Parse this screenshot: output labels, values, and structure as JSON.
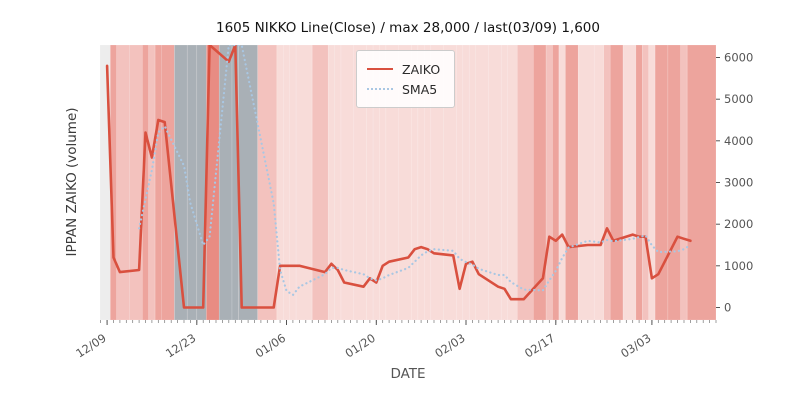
{
  "chart_data": {
    "type": "line",
    "title": "1605 NIKKO Line(Close) / max 28,000 / last(03/09) 1,600",
    "xlabel": "DATE",
    "ylabel": "IPPAN ZAIKO (volume)",
    "ylim": [
      -300,
      6300
    ],
    "x_days_range": [
      -1.1,
      95
    ],
    "yticks": [
      0,
      1000,
      2000,
      3000,
      4000,
      5000,
      6000
    ],
    "xticks": [
      {
        "label": "12/09",
        "day": 0
      },
      {
        "label": "12/23",
        "day": 14
      },
      {
        "label": "01/06",
        "day": 28
      },
      {
        "label": "01/20",
        "day": 42
      },
      {
        "label": "02/03",
        "day": 56
      },
      {
        "label": "02/17",
        "day": 70
      },
      {
        "label": "03/03",
        "day": 85
      }
    ],
    "dates": [
      "12/09",
      "12/10",
      "12/11",
      "12/14",
      "12/15",
      "12/16",
      "12/17",
      "12/18",
      "12/21",
      "12/22",
      "12/24",
      "12/25",
      "12/28",
      "12/29",
      "12/30",
      "01/04",
      "01/05",
      "01/06",
      "01/07",
      "01/08",
      "01/12",
      "01/13",
      "01/14",
      "01/15",
      "01/18",
      "01/19",
      "01/20",
      "01/21",
      "01/22",
      "01/25",
      "01/26",
      "01/27",
      "01/28",
      "01/29",
      "02/01",
      "02/02",
      "02/03",
      "02/04",
      "02/05",
      "02/08",
      "02/09",
      "02/10",
      "02/12",
      "02/15",
      "02/16",
      "02/17",
      "02/18",
      "02/19",
      "02/22",
      "02/24",
      "02/25",
      "02/26",
      "02/29",
      "03/01",
      "03/02",
      "03/03",
      "03/04",
      "03/07",
      "03/08",
      "03/09"
    ],
    "days": [
      0,
      1,
      2,
      5,
      6,
      7,
      8,
      9,
      12,
      13,
      15,
      16,
      19,
      20,
      21,
      26,
      27,
      28,
      29,
      30,
      34,
      35,
      36,
      37,
      40,
      41,
      42,
      43,
      44,
      47,
      48,
      49,
      50,
      51,
      54,
      55,
      56,
      57,
      58,
      61,
      62,
      63,
      65,
      68,
      69,
      70,
      71,
      72,
      75,
      77,
      78,
      79,
      82,
      83,
      84,
      85,
      86,
      89,
      90,
      91
    ],
    "series": [
      {
        "name": "ZAIKO",
        "color": "#d9503f",
        "style": "solid",
        "width": 2.6,
        "values": [
          5800,
          1200,
          850,
          900,
          4200,
          3600,
          4500,
          4450,
          0,
          0,
          0,
          28000,
          5900,
          28000,
          0,
          0,
          1000,
          1000,
          1000,
          1000,
          850,
          1050,
          900,
          600,
          500,
          700,
          600,
          1000,
          1100,
          1200,
          1400,
          1450,
          1400,
          1300,
          1250,
          450,
          1050,
          1100,
          800,
          500,
          450,
          200,
          200,
          700,
          1700,
          1600,
          1750,
          1450,
          1500,
          1500,
          1900,
          1600,
          1750,
          1700,
          1700,
          700,
          800,
          1700,
          1650,
          1600
        ]
      },
      {
        "name": "SMA5",
        "color": "#a9c7e3",
        "style": "dotted",
        "width": 2.2,
        "values": [
          null,
          null,
          null,
          1900,
          2600,
          3300,
          4200,
          4350,
          3400,
          2500,
          1500,
          1700,
          6800,
          12000,
          13000,
          2500,
          900,
          400,
          300,
          500,
          800,
          950,
          950,
          900,
          800,
          700,
          650,
          700,
          780,
          950,
          1100,
          1250,
          1350,
          1400,
          1360,
          1170,
          1090,
          1030,
          930,
          780,
          780,
          610,
          430,
          410,
          650,
          880,
          1190,
          1440,
          1600,
          1560,
          1620,
          1590,
          1650,
          1690,
          1730,
          1490,
          1330,
          1350,
          1400,
          1500
        ]
      }
    ],
    "legend": {
      "position": "upper-center-left"
    },
    "background_bands": {
      "palette": {
        "pale": "#ededed",
        "base": "#f8dcd9",
        "mid": "#f3c2be",
        "dark": "#eda49d",
        "red": "#e88c83",
        "gray": "#a9b0b6"
      },
      "keys": [
        "pale",
        "dark",
        "mid",
        "mid",
        "dark",
        "mid",
        "dark",
        "dark",
        "gray",
        "gray",
        "gray",
        "red",
        "gray",
        "gray",
        "gray",
        "mid",
        "base",
        "base",
        "base",
        "base",
        "mid",
        "base",
        "base",
        "base",
        "base",
        "base",
        "base",
        "base",
        "base",
        "base",
        "base",
        "base",
        "base",
        "base",
        "base",
        "base",
        "base",
        "base",
        "base",
        "base",
        "base",
        "base",
        "mid",
        "dark",
        "mid",
        "dark",
        "base",
        "dark",
        "base",
        "base",
        "mid",
        "dark",
        "base",
        "dark",
        "mid",
        "base",
        "dark",
        "dark",
        "mid",
        "dark"
      ]
    },
    "axis_text_color": "#555555",
    "tick_color": "#777777"
  }
}
